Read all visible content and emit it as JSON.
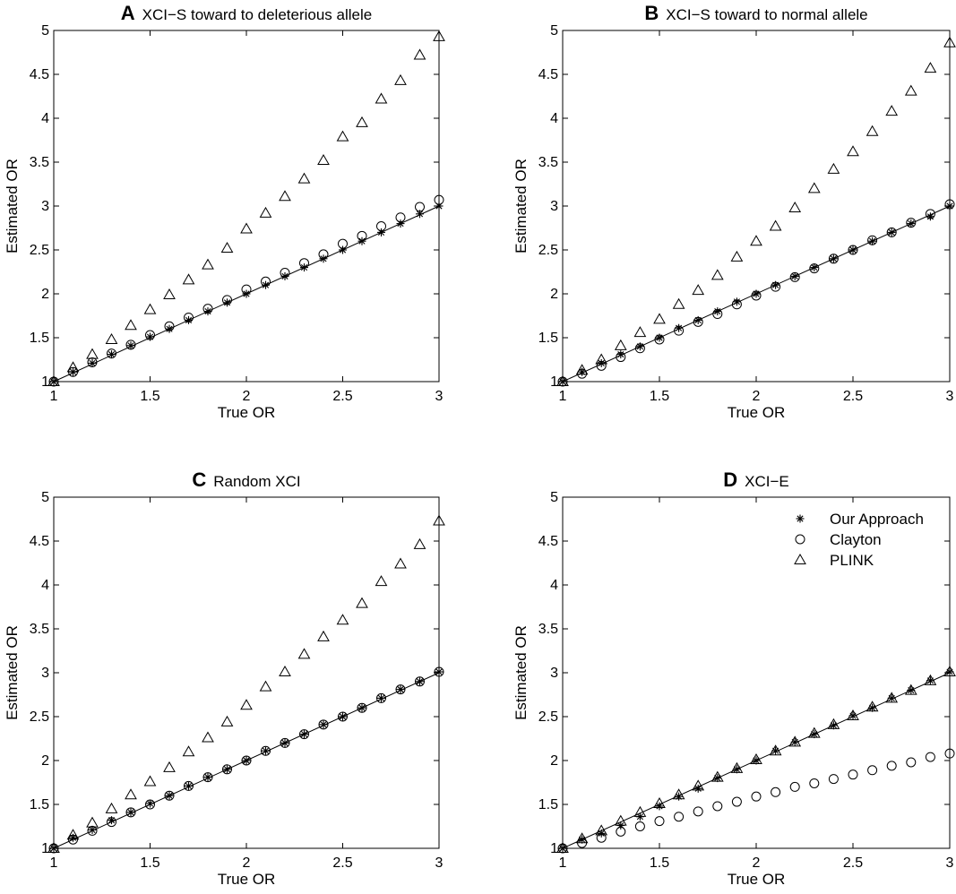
{
  "chart_data": [
    {
      "type": "scatter",
      "panel": "A",
      "title": "XCI−S toward to deleterious allele",
      "xlabel": "True OR",
      "ylabel": "Estimated OR",
      "xlim": [
        1,
        3
      ],
      "ylim": [
        1,
        5
      ],
      "x_ticks": [
        "1",
        "1.5",
        "2",
        "2.5",
        "3"
      ],
      "y_ticks": [
        "1",
        "1.5",
        "2",
        "2.5",
        "3",
        "3.5",
        "4",
        "4.5",
        "5"
      ],
      "legend": null,
      "reference_line": "y = x",
      "x": [
        1.0,
        1.1,
        1.2,
        1.3,
        1.4,
        1.5,
        1.6,
        1.7,
        1.8,
        1.9,
        2.0,
        2.1,
        2.2,
        2.3,
        2.4,
        2.5,
        2.6,
        2.7,
        2.8,
        2.9,
        3.0
      ],
      "series": [
        {
          "name": "Our Approach",
          "marker": "asterisk",
          "values": [
            1.0,
            1.11,
            1.21,
            1.31,
            1.41,
            1.51,
            1.6,
            1.7,
            1.8,
            1.9,
            2.0,
            2.1,
            2.2,
            2.3,
            2.4,
            2.5,
            2.6,
            2.7,
            2.8,
            2.91,
            3.0
          ]
        },
        {
          "name": "Clayton",
          "marker": "circle",
          "values": [
            1.0,
            1.11,
            1.22,
            1.32,
            1.42,
            1.53,
            1.63,
            1.73,
            1.83,
            1.93,
            2.05,
            2.14,
            2.24,
            2.35,
            2.45,
            2.57,
            2.66,
            2.77,
            2.87,
            2.99,
            3.07
          ]
        },
        {
          "name": "PLINK",
          "marker": "triangle",
          "values": [
            1.0,
            1.16,
            1.31,
            1.48,
            1.64,
            1.82,
            1.99,
            2.16,
            2.33,
            2.52,
            2.74,
            2.92,
            3.11,
            3.31,
            3.52,
            3.79,
            3.95,
            4.22,
            4.43,
            4.72,
            4.93
          ]
        }
      ]
    },
    {
      "type": "scatter",
      "panel": "B",
      "title": "XCI−S toward to normal allele",
      "xlabel": "True OR",
      "ylabel": "Estimated OR",
      "xlim": [
        1,
        3
      ],
      "ylim": [
        1,
        5
      ],
      "x_ticks": [
        "1",
        "1.5",
        "2",
        "2.5",
        "3"
      ],
      "y_ticks": [
        "1",
        "1.5",
        "2",
        "2.5",
        "3",
        "3.5",
        "4",
        "4.5",
        "5"
      ],
      "legend": null,
      "reference_line": "y = x",
      "x": [
        1.0,
        1.1,
        1.2,
        1.3,
        1.4,
        1.5,
        1.6,
        1.7,
        1.8,
        1.9,
        2.0,
        2.1,
        2.2,
        2.3,
        2.4,
        2.5,
        2.6,
        2.7,
        2.8,
        2.9,
        3.0
      ],
      "series": [
        {
          "name": "Our Approach",
          "marker": "asterisk",
          "values": [
            1.0,
            1.11,
            1.21,
            1.31,
            1.4,
            1.5,
            1.61,
            1.7,
            1.8,
            1.91,
            2.0,
            2.1,
            2.2,
            2.3,
            2.4,
            2.5,
            2.6,
            2.7,
            2.8,
            2.88,
            3.0
          ]
        },
        {
          "name": "Clayton",
          "marker": "circle",
          "values": [
            1.0,
            1.09,
            1.18,
            1.28,
            1.38,
            1.48,
            1.58,
            1.68,
            1.77,
            1.88,
            1.98,
            2.08,
            2.19,
            2.29,
            2.4,
            2.5,
            2.61,
            2.7,
            2.81,
            2.91,
            3.02
          ]
        },
        {
          "name": "PLINK",
          "marker": "triangle",
          "values": [
            1.0,
            1.13,
            1.25,
            1.41,
            1.56,
            1.71,
            1.88,
            2.04,
            2.21,
            2.42,
            2.6,
            2.77,
            2.98,
            3.2,
            3.42,
            3.62,
            3.85,
            4.08,
            4.31,
            4.57,
            4.86
          ]
        }
      ]
    },
    {
      "type": "scatter",
      "panel": "C",
      "title": "Random XCI",
      "xlabel": "True OR",
      "ylabel": "Estimated OR",
      "xlim": [
        1,
        3
      ],
      "ylim": [
        1,
        5
      ],
      "x_ticks": [
        "1",
        "1.5",
        "2",
        "2.5",
        "3"
      ],
      "y_ticks": [
        "1",
        "1.5",
        "2",
        "2.5",
        "3",
        "3.5",
        "4",
        "4.5",
        "5"
      ],
      "legend": null,
      "reference_line": "y = x",
      "x": [
        1.0,
        1.1,
        1.2,
        1.3,
        1.4,
        1.5,
        1.6,
        1.7,
        1.8,
        1.9,
        2.0,
        2.1,
        2.2,
        2.3,
        2.4,
        2.5,
        2.6,
        2.7,
        2.8,
        2.9,
        3.0
      ],
      "series": [
        {
          "name": "Our Approach",
          "marker": "asterisk",
          "values": [
            1.0,
            1.12,
            1.21,
            1.32,
            1.41,
            1.51,
            1.6,
            1.71,
            1.81,
            1.9,
            2.0,
            2.11,
            2.2,
            2.3,
            2.41,
            2.5,
            2.6,
            2.71,
            2.81,
            2.9,
            3.01
          ]
        },
        {
          "name": "Clayton",
          "marker": "circle",
          "values": [
            1.0,
            1.1,
            1.2,
            1.3,
            1.41,
            1.5,
            1.6,
            1.71,
            1.81,
            1.9,
            2.0,
            2.11,
            2.2,
            2.3,
            2.41,
            2.5,
            2.6,
            2.71,
            2.81,
            2.9,
            3.01
          ]
        },
        {
          "name": "PLINK",
          "marker": "triangle",
          "values": [
            1.0,
            1.15,
            1.29,
            1.45,
            1.61,
            1.76,
            1.92,
            2.1,
            2.26,
            2.44,
            2.63,
            2.84,
            3.01,
            3.21,
            3.41,
            3.6,
            3.79,
            4.04,
            4.24,
            4.46,
            4.73
          ]
        }
      ]
    },
    {
      "type": "scatter",
      "panel": "D",
      "title": "XCI−E",
      "xlabel": "True OR",
      "ylabel": "Estimated OR",
      "xlim": [
        1,
        3
      ],
      "ylim": [
        1,
        5
      ],
      "x_ticks": [
        "1",
        "1.5",
        "2",
        "2.5",
        "3"
      ],
      "y_ticks": [
        "1",
        "1.5",
        "2",
        "2.5",
        "3",
        "3.5",
        "4",
        "4.5",
        "5"
      ],
      "legend": "top-right",
      "reference_line": "y = x",
      "x": [
        1.0,
        1.1,
        1.2,
        1.3,
        1.4,
        1.5,
        1.6,
        1.7,
        1.8,
        1.9,
        2.0,
        2.1,
        2.2,
        2.3,
        2.4,
        2.5,
        2.6,
        2.7,
        2.8,
        2.9,
        3.0
      ],
      "series": [
        {
          "name": "Our Approach",
          "marker": "asterisk",
          "values": [
            1.0,
            1.1,
            1.17,
            1.26,
            1.36,
            1.48,
            1.59,
            1.68,
            1.8,
            1.9,
            2.0,
            2.11,
            2.21,
            2.3,
            2.4,
            2.51,
            2.6,
            2.71,
            2.8,
            2.91,
            3.01
          ]
        },
        {
          "name": "Clayton",
          "marker": "circle",
          "values": [
            1.0,
            1.06,
            1.12,
            1.19,
            1.25,
            1.31,
            1.36,
            1.42,
            1.48,
            1.53,
            1.59,
            1.64,
            1.7,
            1.74,
            1.79,
            1.84,
            1.89,
            1.94,
            1.98,
            2.04,
            2.08
          ]
        },
        {
          "name": "PLINK",
          "marker": "triangle",
          "values": [
            1.0,
            1.11,
            1.2,
            1.31,
            1.41,
            1.51,
            1.61,
            1.71,
            1.81,
            1.91,
            2.01,
            2.11,
            2.21,
            2.31,
            2.41,
            2.51,
            2.61,
            2.71,
            2.8,
            2.91,
            3.01
          ]
        }
      ]
    }
  ]
}
